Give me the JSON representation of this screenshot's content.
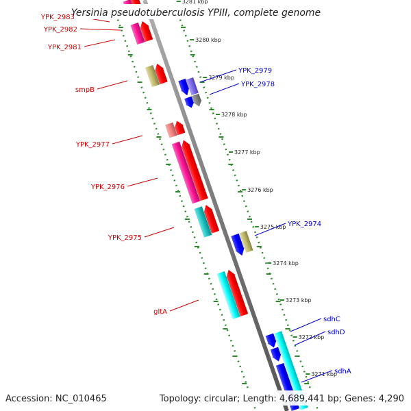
{
  "title": "Yersinia pseudotuberculosis YPIII, complete genome",
  "footer": {
    "accession": "Accession: NC_010465",
    "topology": "Topology: circular; Length: 4,689,441 bp; Genes: 4,290"
  },
  "colors": {
    "forward_label": "#cc0000",
    "reverse_label": "#0000cc",
    "backbone": "#888888",
    "dotted_track": "#2a8a2a"
  },
  "kbp_ticks": [
    "3281 kbp",
    "3280 kbp",
    "3279 kbp",
    "3278 kbp",
    "3277 kbp",
    "3276 kbp",
    "3275 kbp",
    "3274 kbp",
    "3273 kbp",
    "3272 kbp",
    "3271 kbp"
  ],
  "forward_labels": [
    "YPK_2983",
    "YPK_2982",
    "YPK_2981",
    "smpB",
    "YPK_2977",
    "YPK_2976",
    "YPK_2975",
    "gltA"
  ],
  "reverse_labels": [
    "YPK_2979",
    "YPK_2978",
    "YPK_2974",
    "sdhC",
    "sdhD",
    "sdhA"
  ]
}
